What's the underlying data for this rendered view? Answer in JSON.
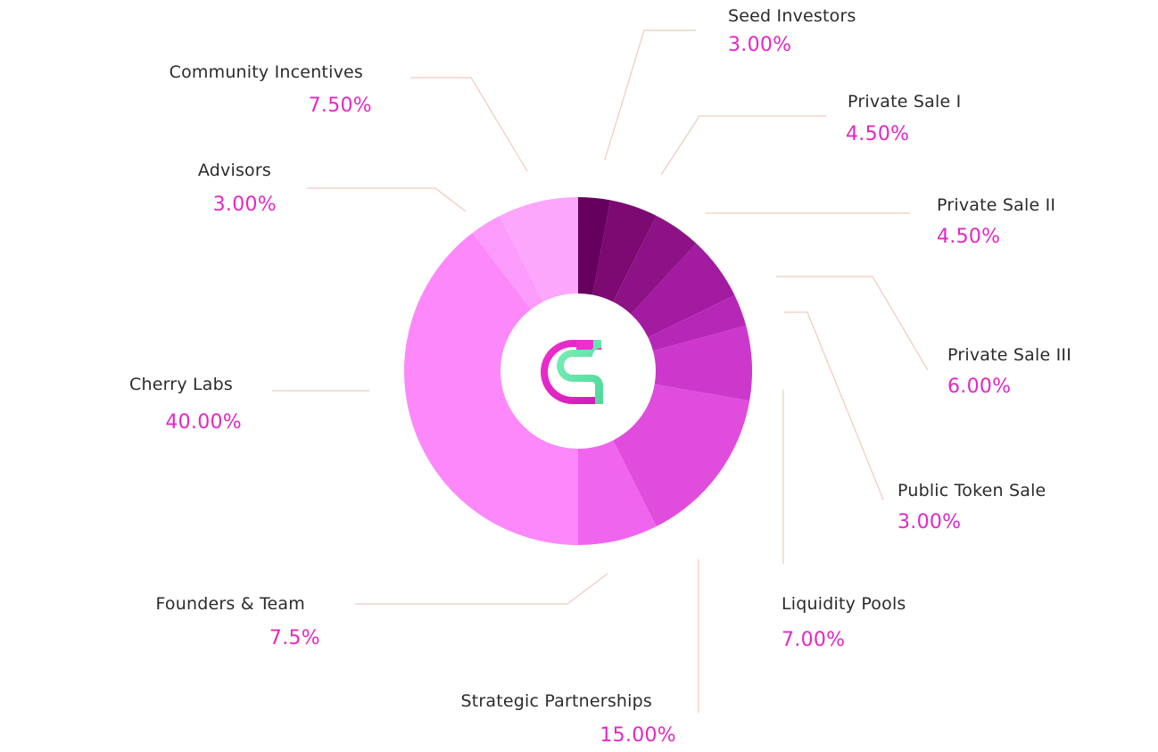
{
  "chart_data": {
    "type": "pie",
    "variant": "donut",
    "title": "",
    "start_angle_deg": 0,
    "direction": "clockwise",
    "label_color": "#e427c5",
    "leader_color": "#f2c9bd",
    "center_logo": "cherry-logo-icon",
    "slices": [
      {
        "label": "Seed Investors",
        "display": "3.00%",
        "value": 3.0,
        "color": "#66005e"
      },
      {
        "label": "Private Sale I",
        "display": "4.50%",
        "value": 4.5,
        "color": "#7c0a72"
      },
      {
        "label": "Private Sale II",
        "display": "4.50%",
        "value": 4.5,
        "color": "#8d1285"
      },
      {
        "label": "Private Sale III",
        "display": "6.00%",
        "value": 6.0,
        "color": "#a21ba0"
      },
      {
        "label": "Public Token Sale",
        "display": "3.00%",
        "value": 3.0,
        "color": "#b727b7"
      },
      {
        "label": "Liquidity Pools",
        "display": "7.00%",
        "value": 7.0,
        "color": "#cc38cc"
      },
      {
        "label": "Strategic Partnerships",
        "display": "15.00%",
        "value": 15.0,
        "color": "#e04ddc"
      },
      {
        "label": "Founders & Team",
        "display": "7.5%",
        "value": 7.5,
        "color": "#f065ee"
      },
      {
        "label": "Cherry Labs",
        "display": "40.00%",
        "value": 40.0,
        "color": "#fc88f9"
      },
      {
        "label": "Advisors",
        "display": "3.00%",
        "value": 3.0,
        "color": "#fc9bfb"
      },
      {
        "label": "Community Incentives",
        "display": "7.50%",
        "value": 7.5,
        "color": "#fca7fc"
      }
    ]
  }
}
